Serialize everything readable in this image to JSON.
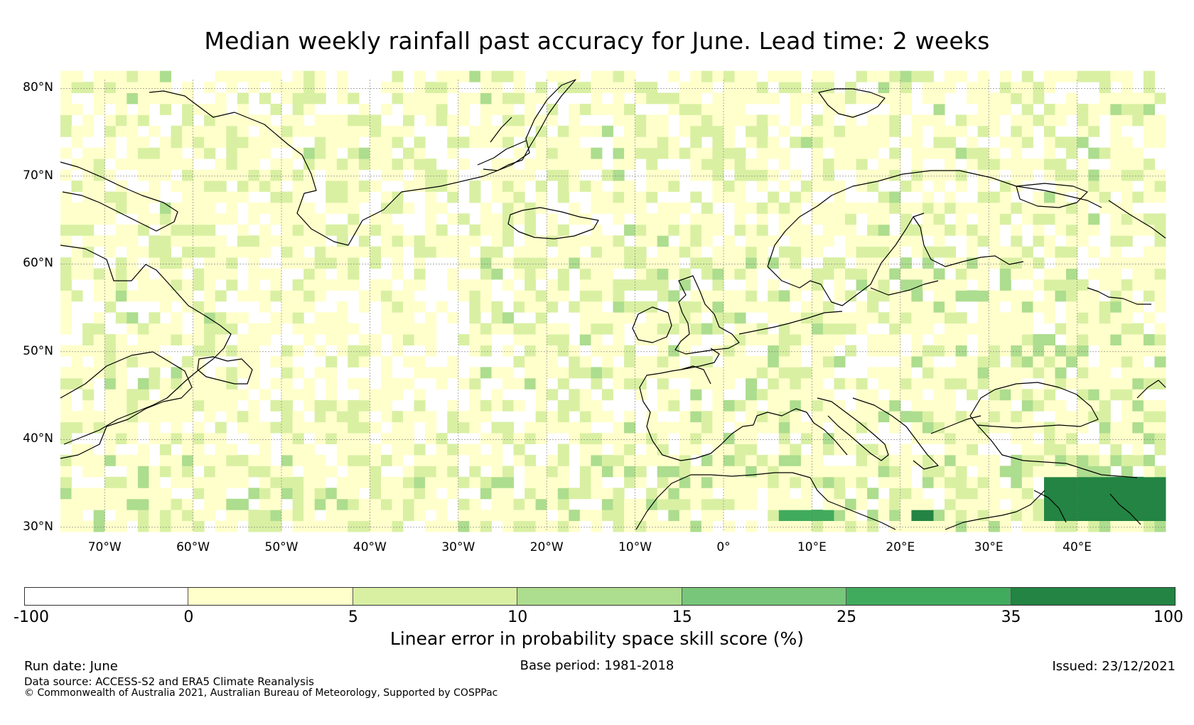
{
  "title": "Median weekly rainfall past accuracy for June. Lead time: 2 weeks",
  "map": {
    "lon_range": [
      -75,
      50
    ],
    "lat_range": [
      29.5,
      81
    ],
    "lat_ticks": [
      {
        "value": 80,
        "label": "80°N"
      },
      {
        "value": 70,
        "label": "70°N"
      },
      {
        "value": 60,
        "label": "60°N"
      },
      {
        "value": 50,
        "label": "50°N"
      },
      {
        "value": 40,
        "label": "40°N"
      },
      {
        "value": 30,
        "label": "30°N"
      }
    ],
    "lon_ticks": [
      {
        "value": -70,
        "label": "70°W"
      },
      {
        "value": -60,
        "label": "60°W"
      },
      {
        "value": -50,
        "label": "50°W"
      },
      {
        "value": -40,
        "label": "40°W"
      },
      {
        "value": -30,
        "label": "30°W"
      },
      {
        "value": -20,
        "label": "20°W"
      },
      {
        "value": -10,
        "label": "10°W"
      },
      {
        "value": 0,
        "label": "0°"
      },
      {
        "value": 10,
        "label": "10°E"
      },
      {
        "value": 20,
        "label": "20°E"
      },
      {
        "value": 30,
        "label": "30°E"
      },
      {
        "value": 40,
        "label": "40°E"
      }
    ],
    "high_skill_regions": [
      {
        "lon": [
          36,
          50
        ],
        "lat": [
          30,
          35
        ],
        "level": 6
      },
      {
        "lon": [
          5.5,
          11.5
        ],
        "lat": [
          30,
          31.8
        ],
        "level": 5
      },
      {
        "lon": [
          20.5,
          23
        ],
        "lat": [
          30,
          31
        ],
        "level": 6
      }
    ]
  },
  "colorbar": {
    "ticks": [
      "-100",
      "0",
      "5",
      "10",
      "15",
      "25",
      "35",
      "100"
    ],
    "colors": [
      "#ffffff",
      "#ffffcc",
      "#d9f0a3",
      "#addd8e",
      "#78c679",
      "#41ab5d",
      "#238443"
    ],
    "label": "Linear error in probability space skill score (%)"
  },
  "footer": {
    "run_date": "Run date: June",
    "base_period": "Base period: 1981-2018",
    "issued": "Issued: 23/12/2021",
    "data_source": "Data source: ACCESS-S2 and ERA5 Climate Reanalysis",
    "copyright": "© Commonwealth of Australia 2021, Australian Bureau of Meteorology, Supported by COSPPac"
  }
}
